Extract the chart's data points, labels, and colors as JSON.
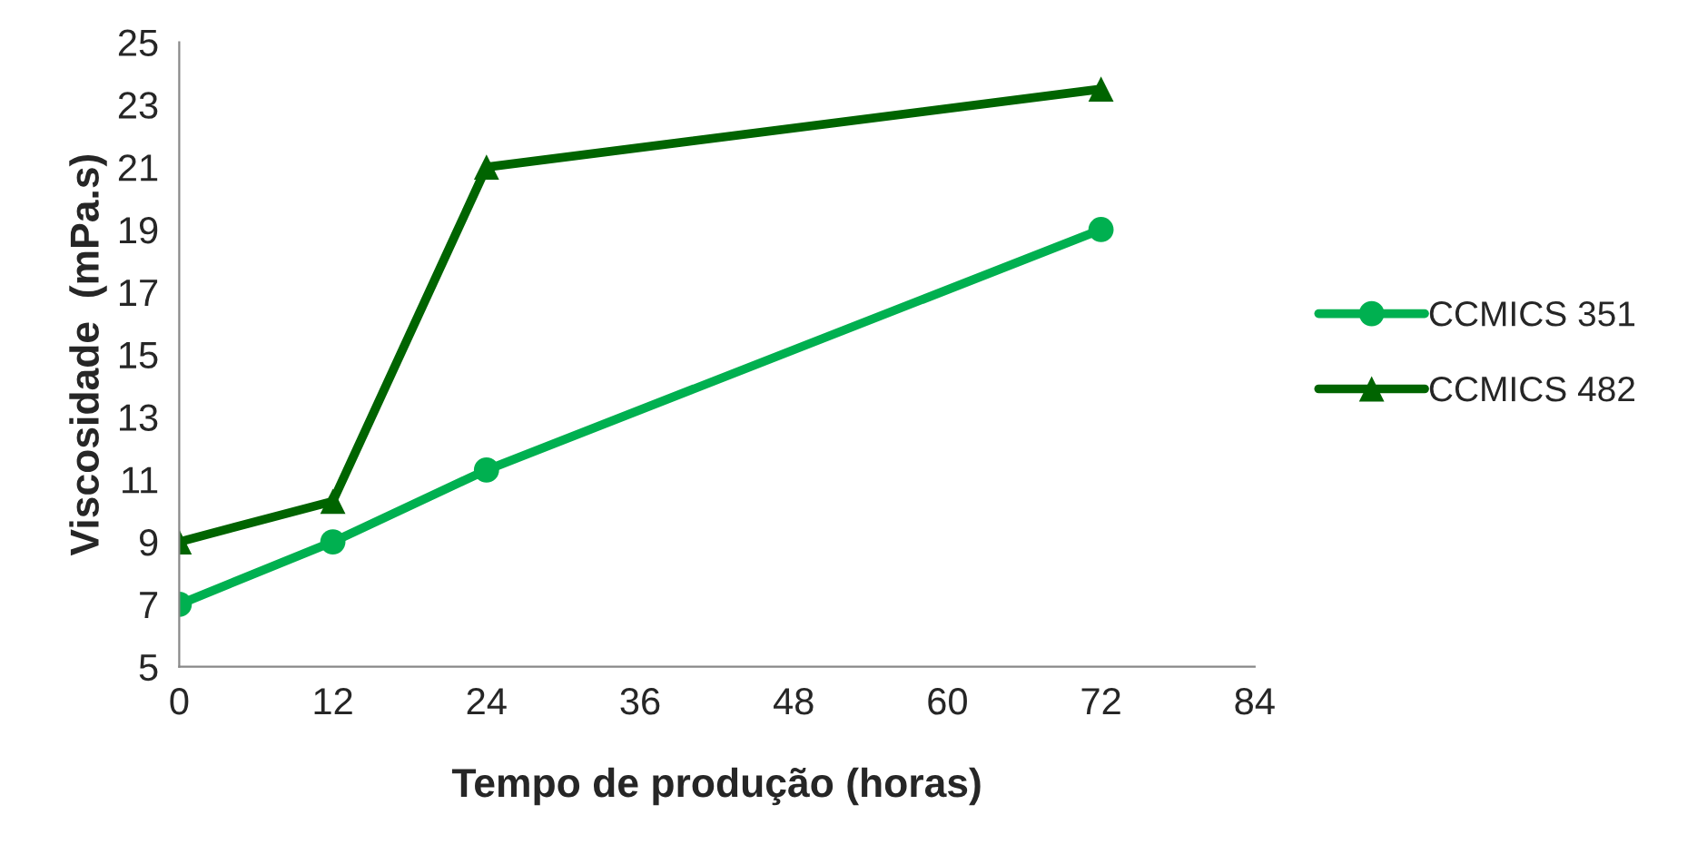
{
  "chart_data": {
    "type": "line",
    "xlabel": "Tempo de produção (horas)",
    "ylabel": "Viscosidade  (mPa.s)",
    "x": [
      0,
      12,
      24,
      72
    ],
    "series": [
      {
        "name": "CCMICS 351",
        "color": "#00b050",
        "marker": "circle",
        "values": [
          7,
          9,
          11.3,
          19
        ]
      },
      {
        "name": "CCMICS 482",
        "color": "#006400",
        "marker": "triangle",
        "values": [
          9,
          10.3,
          21,
          23.5
        ]
      }
    ],
    "xlim": [
      0,
      84
    ],
    "xticks": [
      0,
      12,
      24,
      36,
      48,
      60,
      72,
      84
    ],
    "ylim": [
      5,
      25
    ],
    "yticks": [
      5,
      7,
      9,
      11,
      13,
      15,
      17,
      19,
      21,
      23,
      25
    ],
    "grid": false,
    "legend": "right",
    "line_style": "solid"
  }
}
